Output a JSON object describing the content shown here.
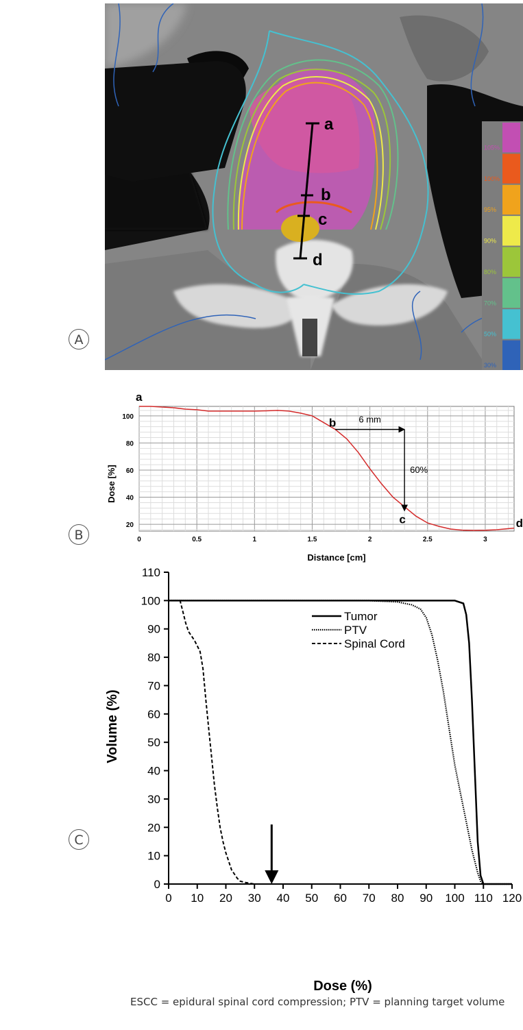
{
  "panels": {
    "a": "A",
    "b": "B",
    "c": "C"
  },
  "ct_image": {
    "profile_markers": [
      "a",
      "b",
      "c",
      "d"
    ],
    "colorbar_labels": [
      "105%",
      "100%",
      "95%",
      "90%",
      "80%",
      "70%",
      "50%",
      "30%"
    ],
    "colorbar_colors": [
      "#c24fb3",
      "#ea5a1d",
      "#f0a31c",
      "#eeea4a",
      "#9cc63a",
      "#63c18b",
      "#45c1d1",
      "#2f63b8"
    ]
  },
  "chart_data": [
    {
      "type": "line",
      "xlabel": "Distance [cm]",
      "ylabel": "Dose [%]",
      "xlim": [
        0,
        3.25
      ],
      "ylim": [
        15,
        107
      ],
      "xticks": [
        "0",
        "0.5",
        "1",
        "1.5",
        "2",
        "2.5",
        "3"
      ],
      "yticks": [
        "20",
        "40",
        "60",
        "80",
        "100"
      ],
      "grid": true,
      "series": [
        {
          "x": [
            0,
            0.1,
            0.2,
            0.3,
            0.4,
            0.5,
            0.6,
            0.7,
            0.8,
            0.9,
            1.0,
            1.1,
            1.2,
            1.3,
            1.4,
            1.5,
            1.6,
            1.7,
            1.8,
            1.9,
            2.0,
            2.1,
            2.2,
            2.3,
            2.4,
            2.5,
            2.6,
            2.7,
            2.8,
            2.9,
            3.0,
            3.1,
            3.2,
            3.25
          ],
          "y": [
            107,
            107,
            106.5,
            106,
            105,
            104.5,
            103.5,
            103.5,
            103.5,
            103.5,
            103.5,
            103.7,
            104,
            103.5,
            102,
            100,
            95,
            90,
            83,
            73,
            61,
            50,
            40,
            33,
            26,
            21,
            18.5,
            16.5,
            15.7,
            15.5,
            15.6,
            16,
            16.8,
            17.2
          ],
          "color": "#d42a2a"
        }
      ],
      "point_labels": [
        {
          "label": "a",
          "x": 0,
          "y": 107
        },
        {
          "label": "b",
          "x": 1.7,
          "y": 90
        },
        {
          "label": "c",
          "x": 2.3,
          "y": 31
        },
        {
          "label": "d",
          "x": 3.25,
          "y": 17
        }
      ],
      "annotations": [
        {
          "text": "6 mm",
          "x_from": 1.7,
          "x_to": 2.3,
          "y": 90
        },
        {
          "text": "60%",
          "x": 2.3,
          "y_from": 90,
          "y_to": 30
        }
      ]
    },
    {
      "type": "line",
      "xlabel": "Dose (%)",
      "ylabel": "Volume (%)",
      "xlim": [
        0,
        120
      ],
      "ylim": [
        0,
        110
      ],
      "xticks": [
        "0",
        "10",
        "20",
        "30",
        "40",
        "50",
        "60",
        "70",
        "80",
        "90",
        "100",
        "110",
        "120"
      ],
      "yticks": [
        "0",
        "10",
        "20",
        "30",
        "40",
        "50",
        "60",
        "70",
        "80",
        "90",
        "100",
        "110"
      ],
      "grid": false,
      "legend": "top-right",
      "series": [
        {
          "name": "Tumor",
          "style": "solid",
          "x": [
            0,
            100,
            103,
            104,
            105,
            106,
            107,
            108,
            109,
            110,
            120
          ],
          "y": [
            100,
            100,
            99,
            95,
            85,
            65,
            40,
            15,
            3,
            0,
            0
          ]
        },
        {
          "name": "PTV",
          "style": "dotted",
          "x": [
            0,
            70,
            80,
            85,
            88,
            90,
            92,
            94,
            96,
            98,
            100,
            102,
            104,
            106,
            108,
            109,
            110,
            120
          ],
          "y": [
            100,
            100,
            99.5,
            98.5,
            97,
            94,
            88,
            79,
            68,
            55,
            42,
            32,
            22,
            12,
            4,
            1,
            0,
            0
          ]
        },
        {
          "name": "Spinal Cord",
          "style": "dashed",
          "x": [
            0,
            4,
            5,
            6,
            7,
            8,
            9,
            10,
            11,
            12,
            13,
            14,
            15,
            16,
            17,
            18,
            19,
            20,
            21,
            22,
            23,
            24,
            25,
            27,
            30,
            120
          ],
          "y": [
            100,
            100,
            96,
            92,
            89,
            87.5,
            86,
            84,
            82,
            76,
            65,
            55,
            45,
            35,
            27,
            20,
            15,
            11,
            8,
            5,
            3.5,
            2,
            1,
            0.5,
            0,
            0
          ]
        }
      ],
      "annotations": [
        {
          "type": "arrow",
          "x": 36,
          "y_from": 21,
          "y_to": 0
        }
      ]
    }
  ],
  "caption": "ESCC = epidural spinal cord compression; PTV = planning target volume"
}
